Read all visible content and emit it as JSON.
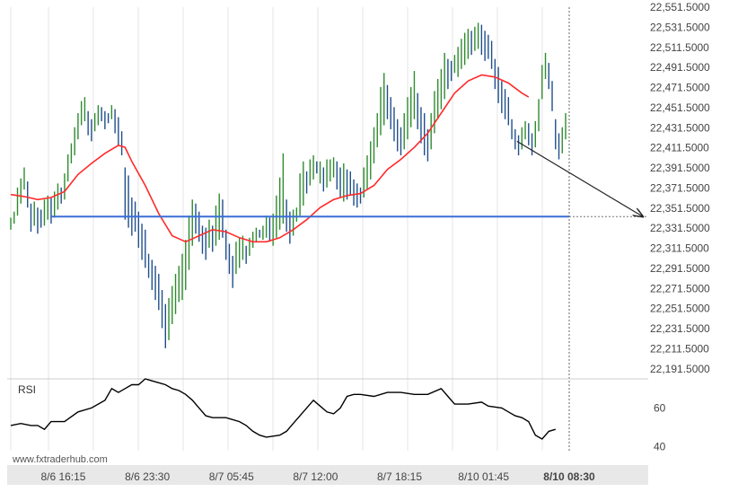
{
  "chart_data": {
    "type": "line",
    "title": "",
    "xlabel": "",
    "ylabel": "",
    "watermark": "www.fxtraderhub.com",
    "colors": {
      "up_bar": "#2e8b2e",
      "down_bar": "#1f4e8c",
      "moving_average": "#ff2b2b",
      "support_line": "#3a6fd6",
      "rsi_line": "#000000",
      "arrow": "#222222",
      "grid": "#e6e6e6",
      "axis_band": "#e8e8e8"
    },
    "price_axis": {
      "ylim": [
        22181.5,
        22551.5
      ],
      "ticks": [
        "22,551.5000",
        "22,531.5000",
        "22,511.5000",
        "22,491.5000",
        "22,471.5000",
        "22,451.5000",
        "22,431.5000",
        "22,411.5000",
        "22,391.5000",
        "22,371.5000",
        "22,351.5000",
        "22,331.5000",
        "22,311.5000",
        "22,291.5000",
        "22,271.5000",
        "22,251.5000",
        "22,231.5000",
        "22,211.5000",
        "22,191.5000"
      ],
      "tick_values": [
        22551.5,
        22531.5,
        22511.5,
        22491.5,
        22471.5,
        22451.5,
        22431.5,
        22411.5,
        22391.5,
        22371.5,
        22351.5,
        22331.5,
        22311.5,
        22291.5,
        22271.5,
        22251.5,
        22231.5,
        22211.5,
        22191.5
      ]
    },
    "time_axis": {
      "labels": [
        "8/6 16:15",
        "8/6 23:30",
        "8/7 05:45",
        "8/7 12:00",
        "8/7 18:15",
        "8/10 01:45",
        "8/10 08:30"
      ],
      "label_bar_index": [
        6,
        31,
        56,
        81,
        106,
        131,
        156
      ],
      "current_label": "8/10 08:30"
    },
    "price_bars": [
      [
        22330,
        22342
      ],
      [
        22336,
        22348
      ],
      [
        22344,
        22372
      ],
      [
        22356,
        22381
      ],
      [
        22370,
        22392
      ],
      [
        22352,
        22378
      ],
      [
        22328,
        22356
      ],
      [
        22334,
        22358
      ],
      [
        22326,
        22352
      ],
      [
        22332,
        22350
      ],
      [
        22334,
        22360
      ],
      [
        22340,
        22364
      ],
      [
        22336,
        22362
      ],
      [
        22342,
        22368
      ],
      [
        22350,
        22376
      ],
      [
        22356,
        22372
      ],
      [
        22360,
        22386
      ],
      [
        22378,
        22405
      ],
      [
        22396,
        22416
      ],
      [
        22404,
        22432
      ],
      [
        22420,
        22446
      ],
      [
        22434,
        22458
      ],
      [
        22438,
        22462
      ],
      [
        22424,
        22448
      ],
      [
        22418,
        22440
      ],
      [
        22428,
        22446
      ],
      [
        22434,
        22454
      ],
      [
        22438,
        22452
      ],
      [
        22430,
        22448
      ],
      [
        22436,
        22446
      ],
      [
        22440,
        22454
      ],
      [
        22426,
        22450
      ],
      [
        22414,
        22442
      ],
      [
        22404,
        22428
      ],
      [
        22340,
        22392
      ],
      [
        22332,
        22384
      ],
      [
        22324,
        22362
      ],
      [
        22328,
        22358
      ],
      [
        22312,
        22348
      ],
      [
        22300,
        22336
      ],
      [
        22292,
        22330
      ],
      [
        22282,
        22306
      ],
      [
        22270,
        22300
      ],
      [
        22260,
        22294
      ],
      [
        22250,
        22286
      ],
      [
        22232,
        22270
      ],
      [
        22212,
        22256
      ],
      [
        22220,
        22262
      ],
      [
        22236,
        22274
      ],
      [
        22246,
        22286
      ],
      [
        22258,
        22294
      ],
      [
        22260,
        22306
      ],
      [
        22270,
        22320
      ],
      [
        22290,
        22344
      ],
      [
        22314,
        22360
      ],
      [
        22326,
        22356
      ],
      [
        22318,
        22348
      ],
      [
        22306,
        22334
      ],
      [
        22300,
        22332
      ],
      [
        22312,
        22340
      ],
      [
        22308,
        22334
      ],
      [
        22314,
        22354
      ],
      [
        22320,
        22366
      ],
      [
        22322,
        22360
      ],
      [
        22300,
        22330
      ],
      [
        22286,
        22316
      ],
      [
        22272,
        22304
      ],
      [
        22286,
        22318
      ],
      [
        22292,
        22322
      ],
      [
        22300,
        22324
      ],
      [
        22296,
        22314
      ],
      [
        22304,
        22322
      ],
      [
        22312,
        22328
      ],
      [
        22318,
        22332
      ],
      [
        22322,
        22330
      ],
      [
        22320,
        22334
      ],
      [
        22322,
        22344
      ],
      [
        22318,
        22342
      ],
      [
        22314,
        22346
      ],
      [
        22322,
        22364
      ],
      [
        22330,
        22382
      ],
      [
        22336,
        22406
      ],
      [
        22328,
        22360
      ],
      [
        22316,
        22348
      ],
      [
        22324,
        22350
      ],
      [
        22338,
        22352
      ],
      [
        22344,
        22386
      ],
      [
        22354,
        22398
      ],
      [
        22366,
        22388
      ],
      [
        22374,
        22400
      ],
      [
        22380,
        22404
      ],
      [
        22386,
        22398
      ],
      [
        22376,
        22398
      ],
      [
        22368,
        22392
      ],
      [
        22372,
        22400
      ],
      [
        22378,
        22400
      ],
      [
        22382,
        22402
      ],
      [
        22370,
        22398
      ],
      [
        22362,
        22392
      ],
      [
        22358,
        22396
      ],
      [
        22360,
        22390
      ],
      [
        22364,
        22388
      ],
      [
        22354,
        22380
      ],
      [
        22352,
        22376
      ],
      [
        22356,
        22372
      ],
      [
        22362,
        22392
      ],
      [
        22370,
        22404
      ],
      [
        22380,
        22418
      ],
      [
        22396,
        22432
      ],
      [
        22412,
        22446
      ],
      [
        22424,
        22472
      ],
      [
        22434,
        22486
      ],
      [
        22440,
        22474
      ],
      [
        22430,
        22462
      ],
      [
        22418,
        22452
      ],
      [
        22408,
        22440
      ],
      [
        22404,
        22432
      ],
      [
        22410,
        22446
      ],
      [
        22420,
        22462
      ],
      [
        22432,
        22472
      ],
      [
        22440,
        22488
      ],
      [
        22430,
        22466
      ],
      [
        22416,
        22452
      ],
      [
        22404,
        22446
      ],
      [
        22398,
        22430
      ],
      [
        22410,
        22446
      ],
      [
        22426,
        22468
      ],
      [
        22440,
        22480
      ],
      [
        22450,
        22490
      ],
      [
        22460,
        22506
      ],
      [
        22470,
        22500
      ],
      [
        22478,
        22498
      ],
      [
        22486,
        22504
      ],
      [
        22482,
        22512
      ],
      [
        22490,
        22520
      ],
      [
        22494,
        22526
      ],
      [
        22500,
        22530
      ],
      [
        22504,
        22528
      ],
      [
        22508,
        22532
      ],
      [
        22510,
        22536
      ],
      [
        22504,
        22534
      ],
      [
        22498,
        22528
      ],
      [
        22500,
        22524
      ],
      [
        22490,
        22518
      ],
      [
        22470,
        22500
      ],
      [
        22456,
        22492
      ],
      [
        22446,
        22478
      ],
      [
        22440,
        22470
      ],
      [
        22434,
        22462
      ],
      [
        22420,
        22440
      ],
      [
        22410,
        22430
      ],
      [
        22404,
        22424
      ],
      [
        22410,
        22432
      ],
      [
        22420,
        22438
      ],
      [
        22414,
        22436
      ],
      [
        22404,
        22426
      ],
      [
        22412,
        22438
      ],
      [
        22428,
        22460
      ],
      [
        22460,
        22494
      ],
      [
        22480,
        22506
      ],
      [
        22470,
        22496
      ],
      [
        22448,
        22478
      ],
      [
        22410,
        22440
      ],
      [
        22400,
        22426
      ],
      [
        22406,
        22432
      ],
      [
        22420,
        22446
      ]
    ],
    "moving_average": [
      [
        0,
        22365
      ],
      [
        4,
        22363
      ],
      [
        8,
        22360
      ],
      [
        12,
        22362
      ],
      [
        16,
        22368
      ],
      [
        20,
        22385
      ],
      [
        24,
        22396
      ],
      [
        28,
        22406
      ],
      [
        32,
        22414
      ],
      [
        34,
        22412
      ],
      [
        36,
        22398
      ],
      [
        40,
        22374
      ],
      [
        44,
        22346
      ],
      [
        48,
        22324
      ],
      [
        52,
        22318
      ],
      [
        56,
        22324
      ],
      [
        60,
        22330
      ],
      [
        64,
        22328
      ],
      [
        68,
        22322
      ],
      [
        72,
        22318
      ],
      [
        76,
        22318
      ],
      [
        80,
        22322
      ],
      [
        84,
        22330
      ],
      [
        88,
        22340
      ],
      [
        92,
        22352
      ],
      [
        96,
        22360
      ],
      [
        100,
        22364
      ],
      [
        104,
        22366
      ],
      [
        108,
        22374
      ],
      [
        112,
        22390
      ],
      [
        116,
        22400
      ],
      [
        120,
        22412
      ],
      [
        124,
        22426
      ],
      [
        128,
        22446
      ],
      [
        132,
        22466
      ],
      [
        136,
        22478
      ],
      [
        140,
        22484
      ],
      [
        144,
        22482
      ],
      [
        148,
        22476
      ],
      [
        152,
        22466
      ],
      [
        154,
        22462
      ]
    ],
    "support_level": 22343,
    "projection": {
      "from_bar": 150,
      "from_price": 22418,
      "to_price": 22343
    },
    "rsi": {
      "label": "RSI",
      "ylim": [
        38,
        75
      ],
      "ticks": [
        "60",
        "40"
      ],
      "tick_values": [
        60,
        40
      ],
      "values": [
        [
          0,
          51
        ],
        [
          3,
          52
        ],
        [
          6,
          51
        ],
        [
          8,
          51
        ],
        [
          10,
          49
        ],
        [
          12,
          53
        ],
        [
          16,
          53
        ],
        [
          20,
          58
        ],
        [
          24,
          60
        ],
        [
          28,
          64
        ],
        [
          30,
          70
        ],
        [
          32,
          68
        ],
        [
          34,
          70
        ],
        [
          36,
          72
        ],
        [
          38,
          72
        ],
        [
          40,
          75
        ],
        [
          42,
          74
        ],
        [
          44,
          73
        ],
        [
          46,
          72
        ],
        [
          48,
          70
        ],
        [
          50,
          69
        ],
        [
          52,
          67
        ],
        [
          54,
          64
        ],
        [
          56,
          60
        ],
        [
          58,
          56
        ],
        [
          60,
          55
        ],
        [
          64,
          55
        ],
        [
          68,
          53
        ],
        [
          70,
          51
        ],
        [
          72,
          48
        ],
        [
          74,
          46
        ],
        [
          76,
          45
        ],
        [
          80,
          46
        ],
        [
          82,
          48
        ],
        [
          84,
          52
        ],
        [
          86,
          56
        ],
        [
          88,
          60
        ],
        [
          90,
          64
        ],
        [
          92,
          61
        ],
        [
          94,
          58
        ],
        [
          96,
          57
        ],
        [
          98,
          60
        ],
        [
          100,
          66
        ],
        [
          102,
          67
        ],
        [
          104,
          67
        ],
        [
          108,
          66
        ],
        [
          112,
          68
        ],
        [
          116,
          68
        ],
        [
          120,
          67
        ],
        [
          124,
          67
        ],
        [
          128,
          70
        ],
        [
          130,
          66
        ],
        [
          132,
          62
        ],
        [
          136,
          62
        ],
        [
          140,
          63
        ],
        [
          142,
          61
        ],
        [
          146,
          60
        ],
        [
          148,
          58
        ],
        [
          150,
          56
        ],
        [
          152,
          55
        ],
        [
          154,
          53
        ],
        [
          156,
          46
        ],
        [
          158,
          44
        ],
        [
          160,
          48
        ],
        [
          162,
          49
        ]
      ]
    }
  }
}
